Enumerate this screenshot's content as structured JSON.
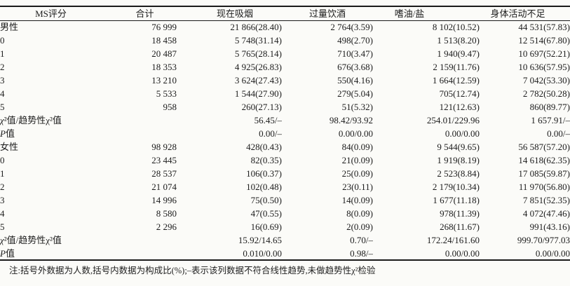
{
  "page": {
    "background_color": "#fbfbf8",
    "text_color": "#1c1c1c",
    "rule_color": "#1a1a1a"
  },
  "table": {
    "columns": [
      {
        "label": "MS评分"
      },
      {
        "label": "合计"
      },
      {
        "label": "现在吸烟"
      },
      {
        "label": "过量饮酒"
      },
      {
        "label": "嗜油/盐"
      },
      {
        "label": "身体活动不足"
      }
    ],
    "rows": [
      {
        "label": "男性",
        "type": "group",
        "cells": [
          "76 999",
          "21 866(28.40)",
          "2 764(3.59)",
          "8 102(10.52)",
          "44 531(57.83)"
        ]
      },
      {
        "label": "0",
        "type": "score",
        "cells": [
          "18 458",
          "5 748(31.14)",
          "498(2.70)",
          "1 513(8.20)",
          "12 514(67.80)"
        ]
      },
      {
        "label": "1",
        "type": "score",
        "cells": [
          "20 487",
          "5 765(28.14)",
          "710(3.47)",
          "1 940(9.47)",
          "10 697(52.21)"
        ]
      },
      {
        "label": "2",
        "type": "score",
        "cells": [
          "18 353",
          "4 925(26.83)",
          "676(3.68)",
          "2 159(11.76)",
          "10 636(57.95)"
        ]
      },
      {
        "label": "3",
        "type": "score",
        "cells": [
          "13 210",
          "3 624(27.43)",
          "550(4.16)",
          "1 664(12.59)",
          "7 042(53.30)"
        ]
      },
      {
        "label": "4",
        "type": "score",
        "cells": [
          "5 533",
          "1 544(27.90)",
          "279(5.04)",
          "705(12.74)",
          "2 782(50.28)"
        ]
      },
      {
        "label": "5",
        "type": "score",
        "cells": [
          "958",
          "260(27.13)",
          "51(5.32)",
          "121(12.63)",
          "860(89.77)"
        ]
      },
      {
        "label": "χ²值/趋势性χ²值",
        "type": "stat",
        "cells": [
          "",
          "56.45/–",
          "98.42/93.92",
          "254.01/229.96",
          "1 657.91/–"
        ]
      },
      {
        "label": "P值",
        "type": "stat",
        "cells": [
          "",
          "0.00/–",
          "0.00/0.00",
          "0.00/0.00",
          "0.00/–"
        ]
      },
      {
        "label": "女性",
        "type": "group",
        "cells": [
          "98 928",
          "428(0.43)",
          "84(0.09)",
          "9 544(9.65)",
          "56 587(57.20)"
        ]
      },
      {
        "label": "0",
        "type": "score",
        "cells": [
          "23 445",
          "82(0.35)",
          "21(0.09)",
          "1 919(8.19)",
          "14 618(62.35)"
        ]
      },
      {
        "label": "1",
        "type": "score",
        "cells": [
          "28 537",
          "106(0.37)",
          "25(0.09)",
          "2 523(8.84)",
          "17 085(59.87)"
        ]
      },
      {
        "label": "2",
        "type": "score",
        "cells": [
          "21 074",
          "102(0.48)",
          "23(0.11)",
          "2 179(10.34)",
          "11 970(56.80)"
        ]
      },
      {
        "label": "3",
        "type": "score",
        "cells": [
          "14 996",
          "75(0.50)",
          "14(0.09)",
          "1 677(11.18)",
          "7 851(52.35)"
        ]
      },
      {
        "label": "4",
        "type": "score",
        "cells": [
          "8 580",
          "47(0.55)",
          "8(0.09)",
          "978(11.39)",
          "4 072(47.46)"
        ]
      },
      {
        "label": "5",
        "type": "score",
        "cells": [
          "2 296",
          "16(0.69)",
          "2(0.09)",
          "268(11.67)",
          "991(43.16)"
        ]
      },
      {
        "label": "χ²值/趋势性χ²值",
        "type": "stat",
        "cells": [
          "",
          "15.92/14.65",
          "0.70/–",
          "172.24/161.60",
          "999.70/977.03"
        ]
      },
      {
        "label": "P值",
        "type": "stat",
        "cells": [
          "",
          "0.010/0.00",
          "0.98/–",
          "0.00/0.00",
          "0.00/0.00"
        ]
      }
    ],
    "footnote": "注:括号外数据为人数,括号内数据为构成比(%);–表示该列数据不符合线性趋势,未做趋势性χ²检验"
  }
}
